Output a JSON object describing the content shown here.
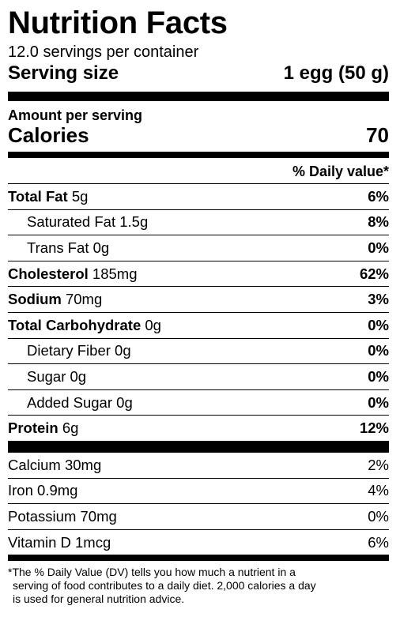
{
  "label": {
    "title": "Nutrition Facts",
    "servings_per_container": "12.0 servings per container",
    "serving_size_label": "Serving size",
    "serving_size_value": "1 egg (50 g)",
    "amount_per_serving": "Amount per serving",
    "calories_label": "Calories",
    "calories_value": "70",
    "daily_value_header": "% Daily value*"
  },
  "nutrients": [
    {
      "name": "Total Fat",
      "amount": "5g",
      "dv": "6%",
      "bold": true,
      "indent": false
    },
    {
      "name": "Saturated Fat",
      "amount": "1.5g",
      "dv": "8%",
      "bold": false,
      "indent": true
    },
    {
      "name": "Trans Fat",
      "amount": "0g",
      "dv": "0%",
      "bold": false,
      "indent": true
    },
    {
      "name": "Cholesterol",
      "amount": "185mg",
      "dv": "62%",
      "bold": true,
      "indent": false
    },
    {
      "name": "Sodium",
      "amount": "70mg",
      "dv": "3%",
      "bold": true,
      "indent": false
    },
    {
      "name": "Total Carbohydrate",
      "amount": "0g",
      "dv": "0%",
      "bold": true,
      "indent": false
    },
    {
      "name": "Dietary Fiber",
      "amount": "0g",
      "dv": "0%",
      "bold": false,
      "indent": true
    },
    {
      "name": "Sugar",
      "amount": "0g",
      "dv": "0%",
      "bold": false,
      "indent": true
    },
    {
      "name": "Added Sugar",
      "amount": "0g",
      "dv": "0%",
      "bold": false,
      "indent": true
    },
    {
      "name": "Protein",
      "amount": "6g",
      "dv": "12%",
      "bold": true,
      "indent": false
    }
  ],
  "vitamins": [
    {
      "name": "Calcium",
      "amount": "30mg",
      "dv": "2%"
    },
    {
      "name": "Iron",
      "amount": "0.9mg",
      "dv": "4%"
    },
    {
      "name": "Potassium",
      "amount": "70mg",
      "dv": "0%"
    },
    {
      "name": "Vitamin D",
      "amount": "1mcg",
      "dv": "6%"
    }
  ],
  "footnote": {
    "line1": "*The % Daily Value (DV) tells you how much a nutrient in a",
    "line2": "serving of food contributes to a daily diet. 2,000 calories a day",
    "line3": "is used for general nutrition advice."
  }
}
